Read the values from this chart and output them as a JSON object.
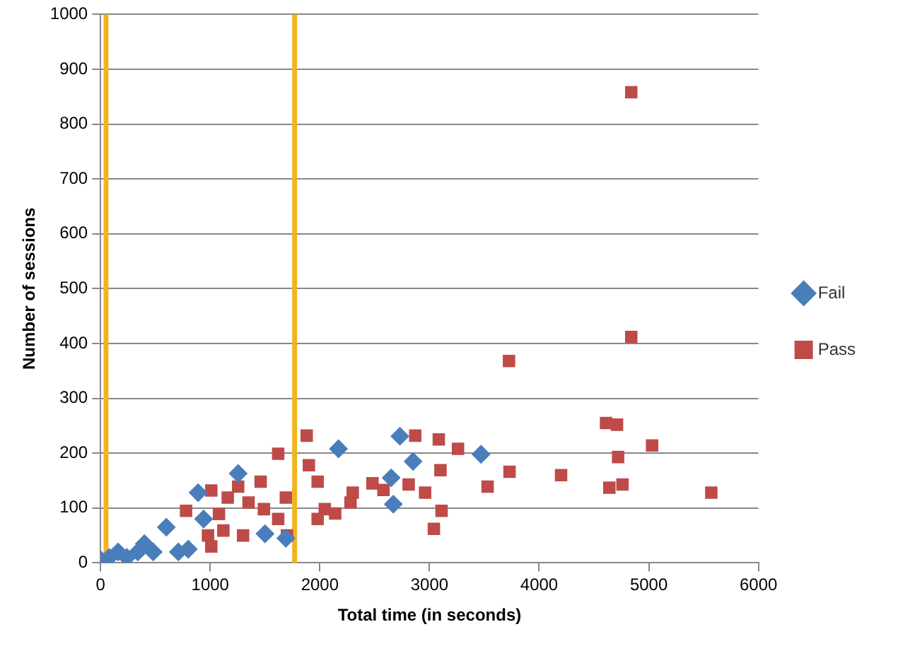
{
  "chart_data": {
    "type": "scatter",
    "xlabel": "Total time (in seconds)",
    "ylabel": "Number of sessions",
    "xlim": [
      0,
      6000
    ],
    "xticks": [
      0,
      1000,
      2000,
      3000,
      4000,
      5000,
      6000
    ],
    "ylim": [
      0,
      1000
    ],
    "yticks": [
      0,
      100,
      200,
      300,
      400,
      500,
      600,
      700,
      800,
      900,
      1000
    ],
    "grid": "y",
    "legend": "right",
    "series": [
      {
        "name": "Fail",
        "color": "#4a7ebb",
        "marker": "diamond",
        "x": [
          0,
          80,
          160,
          240,
          340,
          400,
          480,
          600,
          710,
          800,
          890,
          940,
          1255,
          1500,
          1690,
          2170,
          2650,
          2670,
          2730,
          2850,
          3470
        ],
        "values": [
          6,
          10,
          20,
          10,
          20,
          35,
          20,
          65,
          20,
          25,
          128,
          80,
          163,
          53,
          45,
          208,
          155,
          107,
          231,
          185,
          198
        ]
      },
      {
        "name": "Pass",
        "color": "#be4b48",
        "marker": "square",
        "x": [
          780,
          1010,
          980,
          1010,
          1080,
          1120,
          1160,
          1255,
          1300,
          1350,
          1460,
          1490,
          1620,
          1620,
          1690,
          1700,
          1880,
          1900,
          1980,
          1980,
          2045,
          2140,
          2280,
          2300,
          2480,
          2580,
          2810,
          2870,
          2960,
          3040,
          3085,
          3100,
          3110,
          3260,
          3530,
          3725,
          3730,
          4200,
          4610,
          4640,
          4710,
          4720,
          4760,
          4840,
          4840,
          5030,
          5570
        ],
        "values": [
          95,
          132,
          50,
          30,
          89,
          59,
          119,
          139,
          50,
          110,
          148,
          98,
          80,
          199,
          119,
          50,
          232,
          178,
          148,
          80,
          98,
          90,
          110,
          128,
          145,
          133,
          143,
          232,
          128,
          62,
          225,
          169,
          95,
          208,
          139,
          368,
          166,
          160,
          255,
          137,
          252,
          193,
          143,
          412,
          858,
          214,
          128
        ]
      }
    ],
    "ref_lines": [
      {
        "axis": "x",
        "value": 50,
        "color": "#f0b41e"
      },
      {
        "axis": "x",
        "value": 1770,
        "color": "#f0b41e"
      }
    ]
  }
}
